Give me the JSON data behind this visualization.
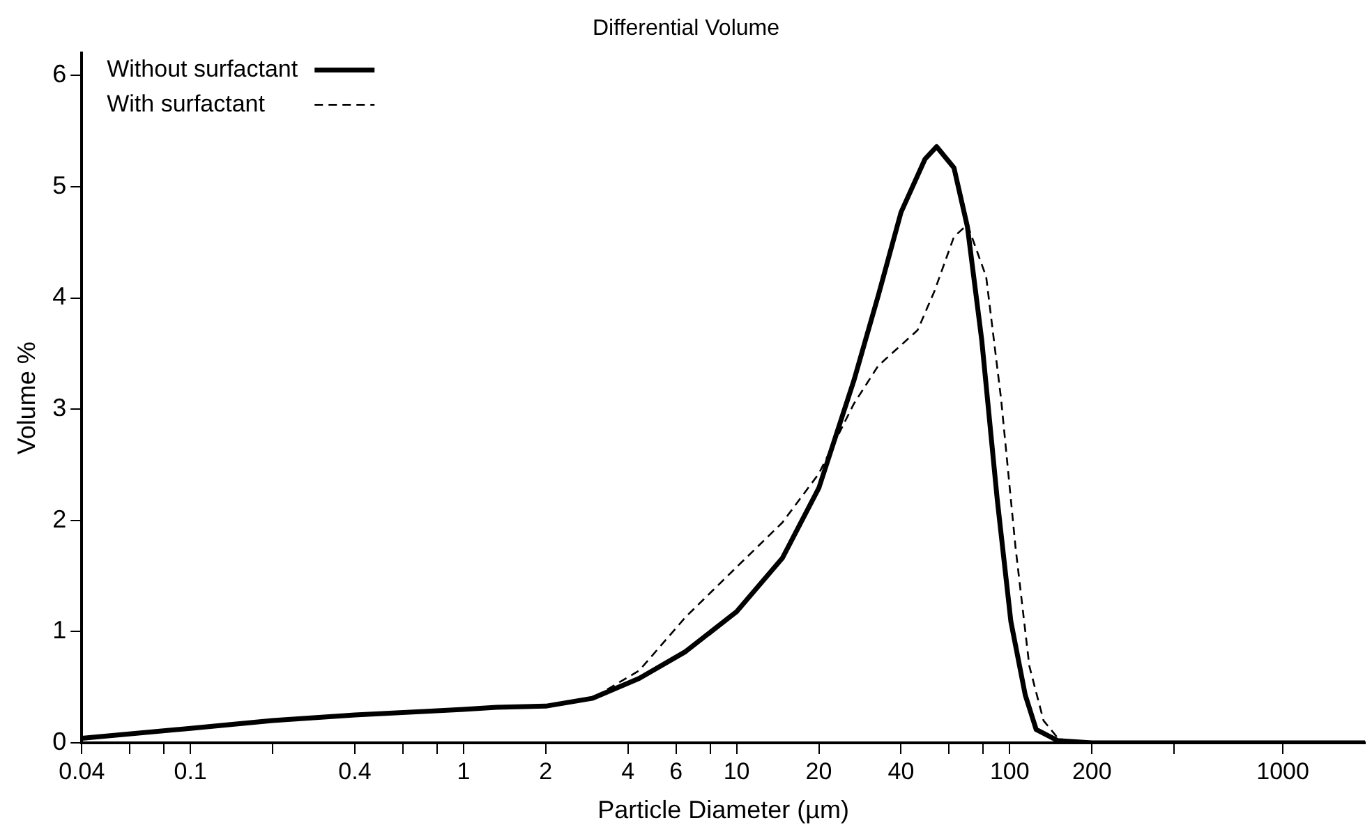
{
  "chart_data": {
    "type": "line",
    "title": "Differential Volume",
    "xlabel": "Particle Diameter (µm)",
    "ylabel": "Volume %",
    "log": "x",
    "xlim": [
      0.04,
      2000
    ],
    "ylim": [
      0,
      6.2
    ],
    "yticks": [
      0,
      1,
      2,
      3,
      4,
      5,
      6
    ],
    "xticks": [
      0.04,
      {
        "value": 0.06,
        "label": null
      },
      {
        "value": 0.08,
        "label": null
      },
      0.1,
      {
        "value": 0.2,
        "label": null
      },
      0.4,
      {
        "value": 0.6,
        "label": null
      },
      {
        "value": 0.8,
        "label": null
      },
      1,
      2,
      4,
      6,
      {
        "value": 8,
        "label": null
      },
      10,
      20,
      40,
      {
        "value": 60,
        "label": null
      },
      {
        "value": 80,
        "label": null
      },
      100,
      200,
      {
        "value": 400,
        "label": null
      },
      1000
    ],
    "grid": false,
    "legend": "top left",
    "marker": "none",
    "series": [
      {
        "name": "Without surfactant",
        "color": "#000000",
        "line_style": "solid",
        "x": [
          0.04,
          0.1,
          0.2,
          0.4,
          1,
          1.32,
          2,
          2.96,
          4.4,
          6.5,
          10,
          14.7,
          20,
          26.9,
          33,
          40,
          49,
          54,
          62.5,
          70,
          79,
          90,
          101,
          114,
          125,
          150,
          200,
          500,
          1000,
          2000
        ],
        "values": [
          0.04,
          0.13,
          0.2,
          0.25,
          0.3,
          0.32,
          0.33,
          0.4,
          0.58,
          0.82,
          1.18,
          1.66,
          2.29,
          3.26,
          4.02,
          4.77,
          5.25,
          5.36,
          5.17,
          4.64,
          3.62,
          2.19,
          1.09,
          0.43,
          0.12,
          0.02,
          0,
          0,
          0,
          0
        ]
      },
      {
        "name": "With surfactant",
        "color": "#000000",
        "line_style": "dashed",
        "x": [
          0.04,
          0.1,
          0.2,
          0.4,
          1,
          2,
          2.96,
          4.4,
          6.5,
          10,
          14.7,
          20,
          26.9,
          33,
          46,
          53,
          62.5,
          70,
          82,
          93,
          105,
          118,
          133,
          155,
          200,
          500,
          1000,
          2000
        ],
        "values": [
          0.04,
          0.13,
          0.2,
          0.25,
          0.3,
          0.33,
          0.4,
          0.65,
          1.13,
          1.58,
          1.98,
          2.42,
          3.05,
          3.39,
          3.71,
          4.06,
          4.55,
          4.66,
          4.19,
          3.09,
          1.76,
          0.69,
          0.2,
          0,
          0,
          0,
          0,
          0
        ]
      }
    ]
  }
}
